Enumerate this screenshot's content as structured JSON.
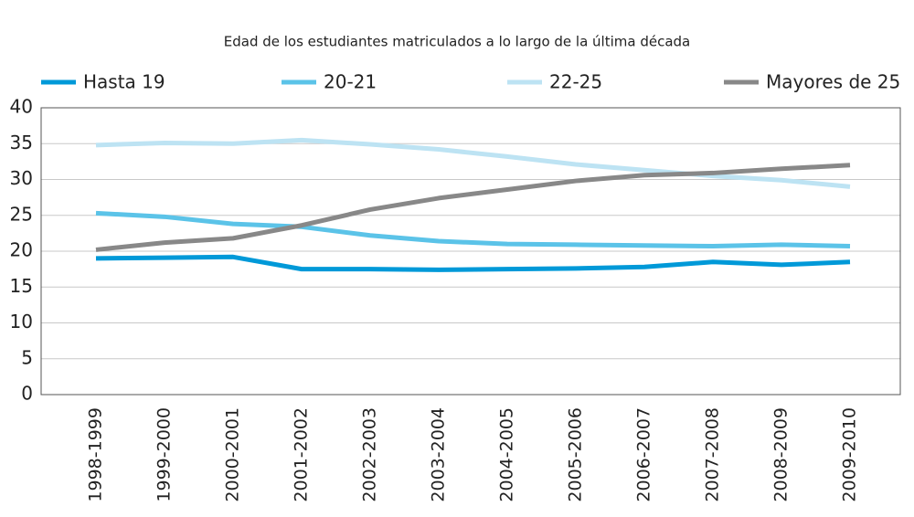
{
  "chart_data": {
    "type": "line",
    "title": "Edad de los estudiantes matriculados a lo largo de la última década",
    "categories": [
      "1998-1999",
      "1999-2000",
      "2000-2001",
      "2001-2002",
      "2002-2003",
      "2003-2004",
      "2004-2005",
      "2005-2006",
      "2006-2007",
      "2007-2008",
      "2008-2009",
      "2009-2010"
    ],
    "series": [
      {
        "name": "Hasta 19",
        "color": "#0099d8",
        "values": [
          19.0,
          19.1,
          19.2,
          17.5,
          17.5,
          17.4,
          17.5,
          17.6,
          17.8,
          18.5,
          18.1,
          18.5
        ]
      },
      {
        "name": "20-21",
        "color": "#5bc3e8",
        "values": [
          25.3,
          24.8,
          23.8,
          23.4,
          22.2,
          21.4,
          21.0,
          20.9,
          20.8,
          20.7,
          20.9,
          20.7
        ]
      },
      {
        "name": "22-25",
        "color": "#bde3f3",
        "values": [
          34.8,
          35.1,
          35.0,
          35.5,
          34.9,
          34.2,
          33.2,
          32.1,
          31.3,
          30.5,
          29.9,
          29.0
        ]
      },
      {
        "name": "Mayores de 25",
        "color": "#888888",
        "values": [
          20.2,
          21.2,
          21.8,
          23.6,
          25.8,
          27.4,
          28.6,
          29.8,
          30.6,
          30.9,
          31.5,
          32.0
        ]
      }
    ],
    "ylim": [
      0,
      40
    ],
    "yticks": [
      0,
      5,
      10,
      15,
      20,
      25,
      30,
      35,
      40
    ],
    "grid": true,
    "legend": "top"
  }
}
